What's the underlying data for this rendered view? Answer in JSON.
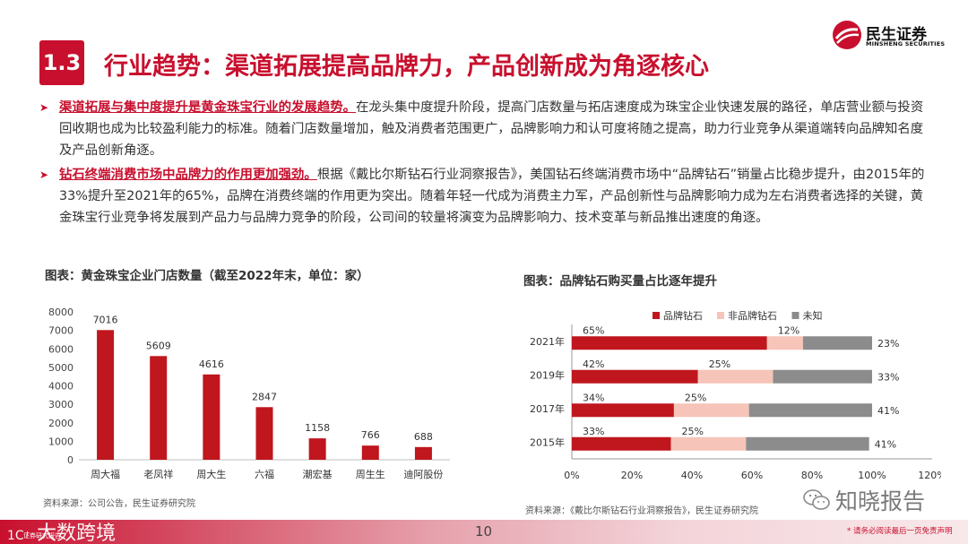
{
  "header": {
    "section_number": "1.3",
    "title": "行业趋势：渠道拓展提高品牌力，产品创新成为角逐核心",
    "logo_cn": "民生证券",
    "logo_en": "MINSHENG SECURITIES"
  },
  "bullets": [
    {
      "highlight": "渠道拓展与集中度提升是黄金珠宝行业的发展趋势。",
      "text": "在龙头集中度提升阶段，提高门店数量与拓店速度成为珠宝企业快速发展的路径，单店营业额与投资回收期也成为比较盈利能力的标准。随着门店数量增加，触及消费者范围更广，品牌影响力和认可度将随之提高，助力行业竞争从渠道端转向品牌知名度及产品创新角逐。"
    },
    {
      "highlight": "钻石终端消费市场中品牌力的作用更加强劲。",
      "text": "根据《戴比尔斯钻石行业洞察报告》，美国钻石终端消费市场中“品牌钻石”销量占比稳步提升，由2015年的33%提升至2021年的65%，品牌在消费终端的作用更为突出。随着年轻一代成为消费主力军，产品创新性与品牌影响力成为左右消费者选择的关键，黄金珠宝行业竞争将发展到产品力与品牌力竞争的阶段，公司间的较量将演变为品牌影响力、技术变革与新品推出速度的角逐。"
    }
  ],
  "chart_left": {
    "caption": "图表：黄金珠宝企业门店数量（截至2022年末，单位：家）",
    "source": "资料来源：公司公告，民生证券研究院"
  },
  "chart_right": {
    "caption": "图表：品牌钻石购买量占比逐年提升",
    "source": "资料来源：《戴比尔斯钻石行业洞察报告》，民生证券研究院"
  },
  "chart_data": [
    {
      "type": "bar",
      "title": "",
      "categories": [
        "周大福",
        "老凤祥",
        "周大生",
        "六福",
        "潮宏基",
        "周生生",
        "迪阿股份"
      ],
      "values": [
        7016,
        5609,
        4616,
        2847,
        1158,
        766,
        688
      ],
      "ylim": [
        0,
        8000
      ],
      "yticks": [
        "0",
        "1000",
        "2000",
        "3000",
        "4000",
        "5000",
        "6000",
        "7000",
        "8000"
      ],
      "data_labels": [
        "7016",
        "5609",
        "4616",
        "2847",
        "1158",
        "766",
        "688"
      ],
      "color": "#c0161e",
      "grid": false
    },
    {
      "type": "bar",
      "orientation": "horizontal-stacked",
      "title": "",
      "categories": [
        "2021年",
        "2019年",
        "2017年",
        "2015年"
      ],
      "series": [
        {
          "name": "品牌钻石",
          "values": [
            65,
            42,
            34,
            33
          ],
          "labels": [
            "65%",
            "42%",
            "34%",
            "33%"
          ],
          "color": "#c0161e"
        },
        {
          "name": "非品牌钻石",
          "values": [
            12,
            25,
            25,
            25
          ],
          "labels": [
            "12%",
            "25%",
            "25%",
            "25%"
          ],
          "color": "#f6c4b8"
        },
        {
          "name": "未知",
          "values": [
            23,
            33,
            41,
            41
          ],
          "labels": [
            "23%",
            "33%",
            "41%",
            "41%"
          ],
          "color": "#8c8c8c"
        }
      ],
      "xlim": [
        0,
        120
      ],
      "xticks": [
        "0%",
        "20%",
        "40%",
        "60%",
        "80%",
        "100%",
        "120%"
      ],
      "legend": "top",
      "grid": false
    }
  ],
  "footer": {
    "page_number": "10",
    "disclaimer": "* 请务必阅读最后一页免责声明",
    "watermark_left": "大数跨境",
    "watermark_left_small": "证券研究报告",
    "watermark_right": "知晓报告"
  },
  "colors": {
    "brand_red": "#c8102e",
    "bar_red": "#c0161e",
    "light_pink": "#f6c4b8",
    "gray": "#8c8c8c"
  }
}
